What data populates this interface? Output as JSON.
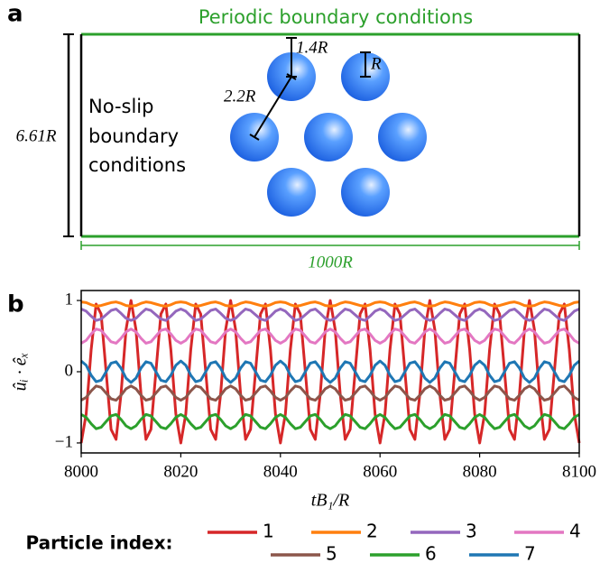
{
  "diagram": {
    "panel_label": "a",
    "top_label": "Periodic boundary conditions",
    "side_label": [
      "No-slip",
      "boundary",
      "conditions"
    ],
    "height_label": "6.61R",
    "width_label": "1000R",
    "spacing_labels": [
      "1.4R",
      "2.2R"
    ],
    "radius_label": "R"
  },
  "chart_data": {
    "type": "line",
    "panel_label": "b",
    "x_label": "tB₁/R",
    "y_label": "ûᵢ · êₓ",
    "legend_title": "Particle index:",
    "xlim": [
      8000,
      8100
    ],
    "ylim": [
      -1.14,
      1.14
    ],
    "xticks": [
      8000,
      8020,
      8040,
      8060,
      8080,
      8100
    ],
    "yticks": [
      {
        "value": -1,
        "label": "−1"
      },
      0,
      1
    ],
    "x": [
      8000,
      8001,
      8002,
      8003,
      8004,
      8005,
      8006,
      8007,
      8008,
      8009,
      8010,
      8011,
      8012,
      8013,
      8014,
      8015,
      8016,
      8017,
      8018,
      8019,
      8020,
      8021,
      8022,
      8023,
      8024,
      8025,
      8026,
      8027,
      8028,
      8029,
      8030,
      8031,
      8032,
      8033,
      8034,
      8035,
      8036,
      8037,
      8038,
      8039,
      8040,
      8041,
      8042,
      8043,
      8044,
      8045,
      8046,
      8047,
      8048,
      8049,
      8050,
      8051,
      8052,
      8053,
      8054,
      8055,
      8056,
      8057,
      8058,
      8059,
      8060,
      8061,
      8062,
      8063,
      8064,
      8065,
      8066,
      8067,
      8068,
      8069,
      8070,
      8071,
      8072,
      8073,
      8074,
      8075,
      8076,
      8077,
      8078,
      8079,
      8080,
      8081,
      8082,
      8083,
      8084,
      8085,
      8086,
      8087,
      8088,
      8089,
      8090,
      8091,
      8092,
      8093,
      8094,
      8095,
      8096,
      8097,
      8098,
      8099,
      8100
    ],
    "series": [
      {
        "name": "1",
        "color": "#d62728",
        "values": [
          -1,
          -0.59,
          0.31,
          0.95,
          0.81,
          0,
          -0.81,
          -0.95,
          -0.31,
          0.59,
          1,
          0.59,
          -0.31,
          -0.95,
          -0.81,
          0,
          0.81,
          0.95,
          0.31,
          -0.59,
          -1,
          -0.59,
          0.31,
          0.95,
          0.81,
          0,
          -0.81,
          -0.95,
          -0.31,
          0.59,
          1,
          0.59,
          -0.31,
          -0.95,
          -0.81,
          0,
          0.81,
          0.95,
          0.31,
          -0.59,
          -1,
          -0.59,
          0.31,
          0.95,
          0.81,
          0,
          -0.81,
          -0.95,
          -0.31,
          0.59,
          1,
          0.59,
          -0.31,
          -0.95,
          -0.81,
          0,
          0.81,
          0.95,
          0.31,
          -0.59,
          -1,
          -0.59,
          0.31,
          0.95,
          0.81,
          0,
          -0.81,
          -0.95,
          -0.31,
          0.59,
          1,
          0.59,
          -0.31,
          -0.95,
          -0.81,
          0,
          0.81,
          0.95,
          0.31,
          -0.59,
          -1,
          -0.59,
          0.31,
          0.95,
          0.81,
          0,
          -0.81,
          -0.95,
          -0.31,
          0.59,
          1,
          0.59,
          -0.31,
          -0.95,
          -0.81,
          0,
          0.81,
          0.95,
          0.31,
          -0.59,
          -1
        ]
      },
      {
        "name": "2",
        "color": "#ff7f0e",
        "values": [
          0.98,
          0.97,
          0.94,
          0.92,
          0.93,
          0.95,
          0.97,
          0.98,
          0.96,
          0.93,
          0.92,
          0.93,
          0.96,
          0.98,
          0.97,
          0.95,
          0.93,
          0.92,
          0.94,
          0.97,
          0.98,
          0.97,
          0.94,
          0.92,
          0.93,
          0.95,
          0.97,
          0.98,
          0.96,
          0.93,
          0.92,
          0.93,
          0.96,
          0.98,
          0.97,
          0.95,
          0.93,
          0.92,
          0.94,
          0.97,
          0.98,
          0.97,
          0.94,
          0.92,
          0.93,
          0.95,
          0.97,
          0.98,
          0.96,
          0.93,
          0.92,
          0.93,
          0.96,
          0.98,
          0.97,
          0.95,
          0.93,
          0.92,
          0.94,
          0.97,
          0.98,
          0.97,
          0.94,
          0.92,
          0.93,
          0.95,
          0.97,
          0.98,
          0.96,
          0.93,
          0.92,
          0.93,
          0.96,
          0.98,
          0.97,
          0.95,
          0.93,
          0.92,
          0.94,
          0.97,
          0.98,
          0.97,
          0.94,
          0.92,
          0.93,
          0.95,
          0.97,
          0.98,
          0.96,
          0.93,
          0.92,
          0.93,
          0.96,
          0.98,
          0.97,
          0.95,
          0.93,
          0.92,
          0.94,
          0.97,
          0.98
        ]
      },
      {
        "name": "3",
        "color": "#9467bd",
        "values": [
          0.88,
          0.85,
          0.78,
          0.72,
          0.74,
          0.8,
          0.86,
          0.88,
          0.82,
          0.75,
          0.72,
          0.75,
          0.82,
          0.88,
          0.86,
          0.8,
          0.74,
          0.72,
          0.78,
          0.85,
          0.88,
          0.85,
          0.78,
          0.72,
          0.74,
          0.8,
          0.86,
          0.88,
          0.82,
          0.75,
          0.72,
          0.75,
          0.82,
          0.88,
          0.86,
          0.8,
          0.74,
          0.72,
          0.78,
          0.85,
          0.88,
          0.85,
          0.78,
          0.72,
          0.74,
          0.8,
          0.86,
          0.88,
          0.82,
          0.75,
          0.72,
          0.75,
          0.82,
          0.88,
          0.86,
          0.8,
          0.74,
          0.72,
          0.78,
          0.85,
          0.88,
          0.85,
          0.78,
          0.72,
          0.74,
          0.8,
          0.86,
          0.88,
          0.82,
          0.75,
          0.72,
          0.75,
          0.82,
          0.88,
          0.86,
          0.8,
          0.74,
          0.72,
          0.78,
          0.85,
          0.88,
          0.85,
          0.78,
          0.72,
          0.74,
          0.8,
          0.86,
          0.88,
          0.82,
          0.75,
          0.72,
          0.75,
          0.82,
          0.88,
          0.86,
          0.8,
          0.74,
          0.72,
          0.78,
          0.85,
          0.88
        ]
      },
      {
        "name": "4",
        "color": "#e377c2",
        "values": [
          0.4,
          0.44,
          0.53,
          0.6,
          0.58,
          0.5,
          0.42,
          0.4,
          0.47,
          0.56,
          0.6,
          0.56,
          0.47,
          0.4,
          0.42,
          0.5,
          0.58,
          0.6,
          0.53,
          0.44,
          0.4,
          0.44,
          0.53,
          0.6,
          0.58,
          0.5,
          0.42,
          0.4,
          0.47,
          0.56,
          0.6,
          0.56,
          0.47,
          0.4,
          0.42,
          0.5,
          0.58,
          0.6,
          0.53,
          0.44,
          0.4,
          0.44,
          0.53,
          0.6,
          0.58,
          0.5,
          0.42,
          0.4,
          0.47,
          0.56,
          0.6,
          0.56,
          0.47,
          0.4,
          0.42,
          0.5,
          0.58,
          0.6,
          0.53,
          0.44,
          0.4,
          0.44,
          0.53,
          0.6,
          0.58,
          0.5,
          0.42,
          0.4,
          0.47,
          0.56,
          0.6,
          0.56,
          0.47,
          0.4,
          0.42,
          0.5,
          0.58,
          0.6,
          0.53,
          0.44,
          0.4,
          0.44,
          0.53,
          0.6,
          0.58,
          0.5,
          0.42,
          0.4,
          0.47,
          0.56,
          0.6,
          0.56,
          0.47,
          0.4,
          0.42,
          0.5,
          0.58,
          0.6,
          0.53,
          0.44,
          0.4
        ]
      },
      {
        "name": "5",
        "color": "#8c564b",
        "values": [
          -0.4,
          -0.36,
          -0.27,
          -0.2,
          -0.22,
          -0.3,
          -0.38,
          -0.4,
          -0.33,
          -0.24,
          -0.2,
          -0.24,
          -0.33,
          -0.4,
          -0.38,
          -0.3,
          -0.22,
          -0.2,
          -0.27,
          -0.36,
          -0.4,
          -0.36,
          -0.27,
          -0.2,
          -0.22,
          -0.3,
          -0.38,
          -0.4,
          -0.33,
          -0.24,
          -0.2,
          -0.24,
          -0.33,
          -0.4,
          -0.38,
          -0.3,
          -0.22,
          -0.2,
          -0.27,
          -0.36,
          -0.4,
          -0.36,
          -0.27,
          -0.2,
          -0.22,
          -0.3,
          -0.38,
          -0.4,
          -0.33,
          -0.24,
          -0.2,
          -0.24,
          -0.33,
          -0.4,
          -0.38,
          -0.3,
          -0.22,
          -0.2,
          -0.27,
          -0.36,
          -0.4,
          -0.36,
          -0.27,
          -0.2,
          -0.22,
          -0.3,
          -0.38,
          -0.4,
          -0.33,
          -0.24,
          -0.2,
          -0.24,
          -0.33,
          -0.4,
          -0.38,
          -0.3,
          -0.22,
          -0.2,
          -0.27,
          -0.36,
          -0.4,
          -0.36,
          -0.27,
          -0.2,
          -0.22,
          -0.3,
          -0.38,
          -0.4,
          -0.33,
          -0.24,
          -0.2,
          -0.24,
          -0.33,
          -0.4,
          -0.38,
          -0.3,
          -0.22,
          -0.2,
          -0.27,
          -0.36,
          -0.4
        ]
      },
      {
        "name": "6",
        "color": "#2ca02c",
        "values": [
          -0.6,
          -0.64,
          -0.73,
          -0.8,
          -0.78,
          -0.7,
          -0.62,
          -0.6,
          -0.67,
          -0.76,
          -0.8,
          -0.76,
          -0.67,
          -0.6,
          -0.62,
          -0.7,
          -0.78,
          -0.8,
          -0.73,
          -0.64,
          -0.6,
          -0.64,
          -0.73,
          -0.8,
          -0.78,
          -0.7,
          -0.62,
          -0.6,
          -0.67,
          -0.76,
          -0.8,
          -0.76,
          -0.67,
          -0.6,
          -0.62,
          -0.7,
          -0.78,
          -0.8,
          -0.73,
          -0.64,
          -0.6,
          -0.64,
          -0.73,
          -0.8,
          -0.78,
          -0.7,
          -0.62,
          -0.6,
          -0.67,
          -0.76,
          -0.8,
          -0.76,
          -0.67,
          -0.6,
          -0.62,
          -0.7,
          -0.78,
          -0.8,
          -0.73,
          -0.64,
          -0.6,
          -0.64,
          -0.73,
          -0.8,
          -0.78,
          -0.7,
          -0.62,
          -0.6,
          -0.67,
          -0.76,
          -0.8,
          -0.76,
          -0.67,
          -0.6,
          -0.62,
          -0.7,
          -0.78,
          -0.8,
          -0.73,
          -0.64,
          -0.6,
          -0.64,
          -0.73,
          -0.8,
          -0.78,
          -0.7,
          -0.62,
          -0.6,
          -0.67,
          -0.76,
          -0.8,
          -0.76,
          -0.67,
          -0.6,
          -0.62,
          -0.7,
          -0.78,
          -0.8,
          -0.73,
          -0.64,
          -0.6
        ]
      },
      {
        "name": "7",
        "color": "#1f77b4",
        "values": [
          0.15,
          0.09,
          -0.05,
          -0.14,
          -0.12,
          0,
          0.12,
          0.14,
          0.05,
          -0.09,
          -0.15,
          -0.09,
          0.05,
          0.14,
          0.12,
          0,
          -0.12,
          -0.14,
          -0.05,
          0.09,
          0.15,
          0.09,
          -0.05,
          -0.14,
          -0.12,
          0,
          0.12,
          0.14,
          0.05,
          -0.09,
          -0.15,
          -0.09,
          0.05,
          0.14,
          0.12,
          0,
          -0.12,
          -0.14,
          -0.05,
          0.09,
          0.15,
          0.09,
          -0.05,
          -0.14,
          -0.12,
          0,
          0.12,
          0.14,
          0.05,
          -0.09,
          -0.15,
          -0.09,
          0.05,
          0.14,
          0.12,
          0,
          -0.12,
          -0.14,
          -0.05,
          0.09,
          0.15,
          0.09,
          -0.05,
          -0.14,
          -0.12,
          0,
          0.12,
          0.14,
          0.05,
          -0.09,
          -0.15,
          -0.09,
          0.05,
          0.14,
          0.12,
          0,
          -0.12,
          -0.14,
          -0.05,
          0.09,
          0.15,
          0.09,
          -0.05,
          -0.14,
          -0.12,
          0,
          0.12,
          0.14,
          0.05,
          -0.09,
          -0.15,
          -0.09,
          0.05,
          0.14,
          0.12,
          0,
          -0.12,
          -0.14,
          -0.05,
          0.09,
          0.15
        ]
      }
    ]
  }
}
